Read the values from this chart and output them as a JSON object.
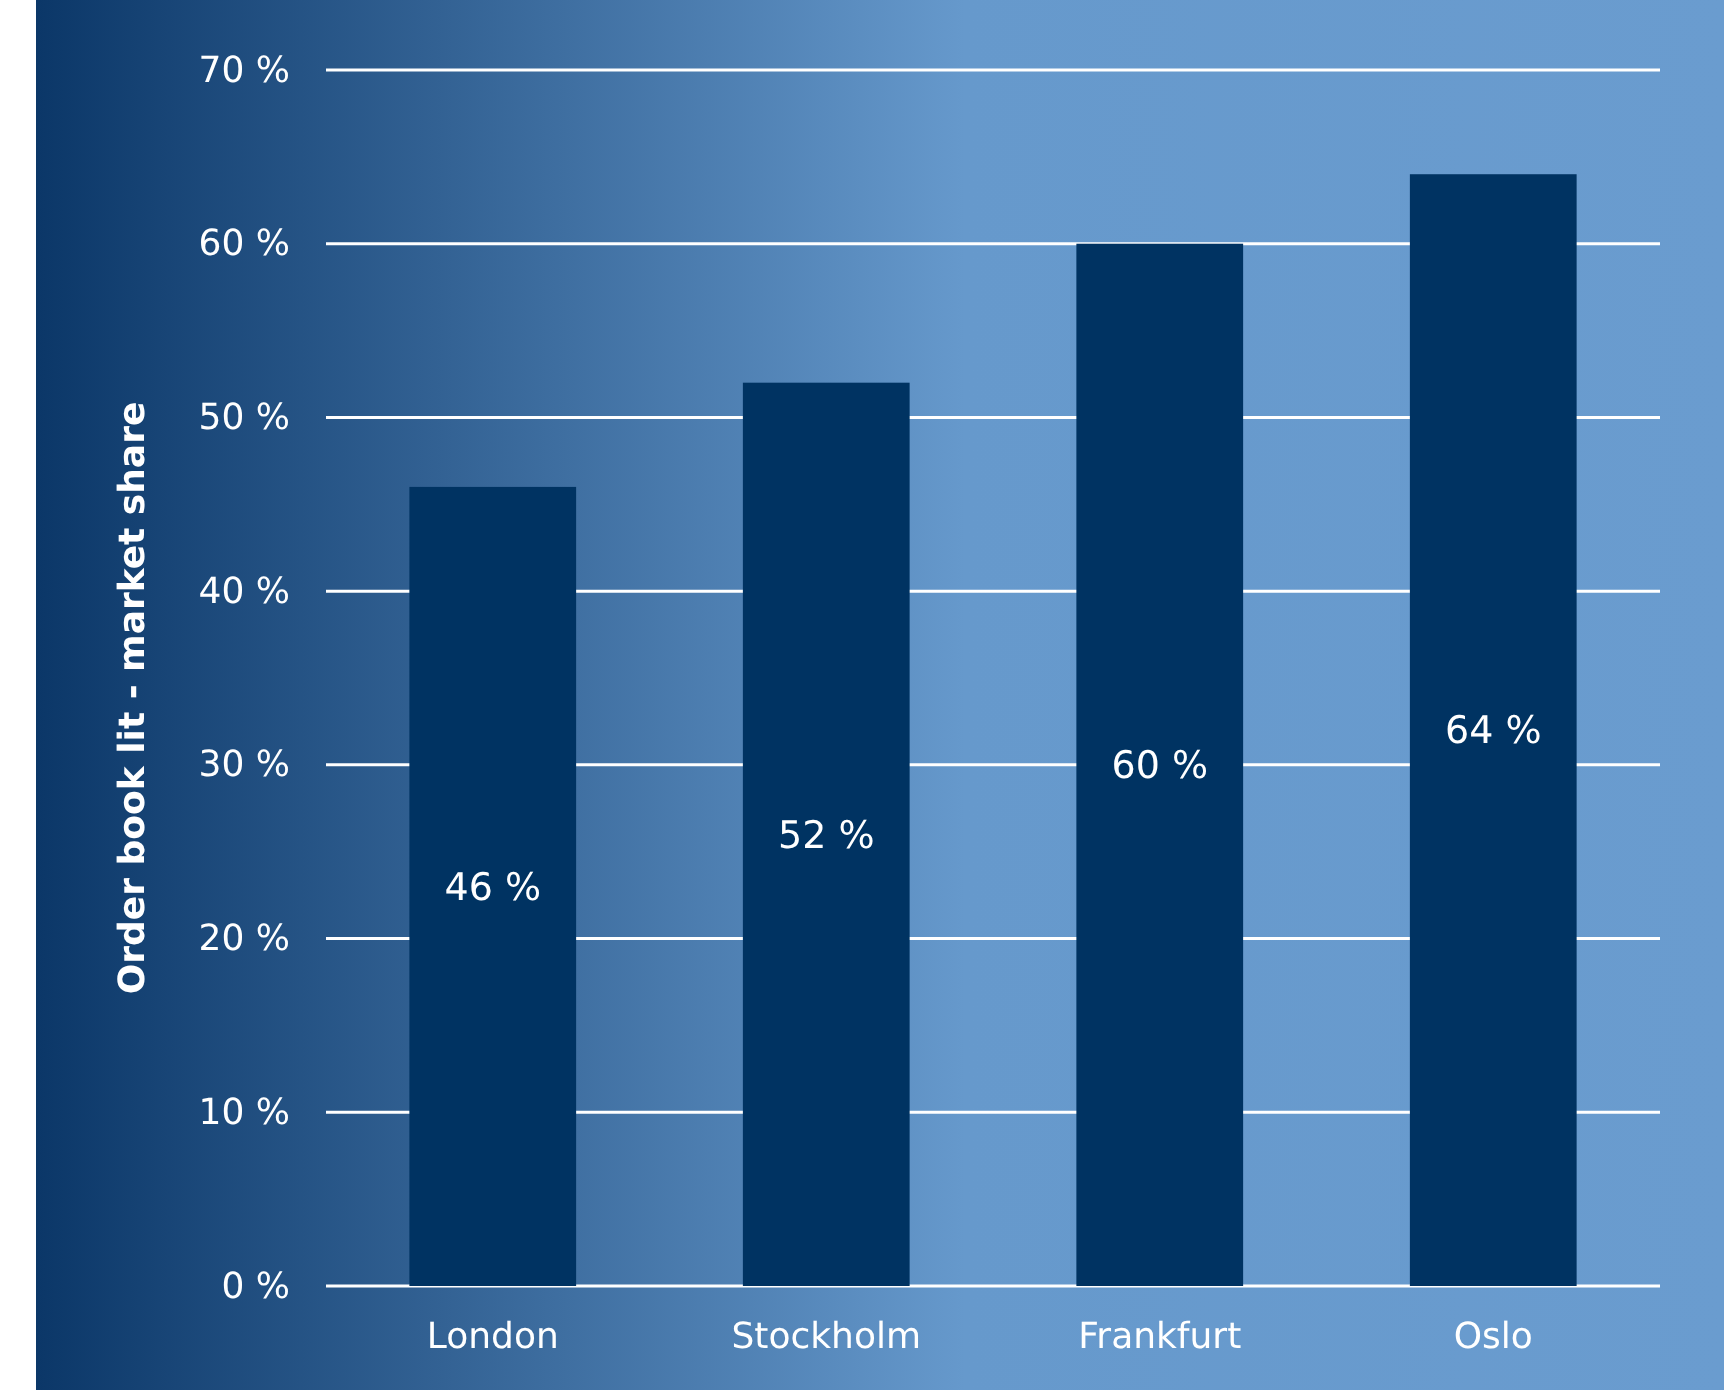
{
  "chart_data": {
    "type": "bar",
    "ylabel": "Order book lit - market share",
    "categories": [
      "London",
      "Stockholm",
      "Frankfurt",
      "Oslo"
    ],
    "values": [
      46,
      52,
      60,
      64
    ],
    "color": "#003362",
    "value_labels": [
      "46 %",
      "52 %",
      "60 %",
      "64 %"
    ],
    "ylim": [
      0,
      70
    ],
    "yticks": [
      {
        "value": 0,
        "label": "0 %"
      },
      {
        "value": 10,
        "label": "10 %"
      },
      {
        "value": 20,
        "label": "20 %"
      },
      {
        "value": 30,
        "label": "30 %"
      },
      {
        "value": 40,
        "label": "40 %"
      },
      {
        "value": 50,
        "label": "50 %"
      },
      {
        "value": 60,
        "label": "60 %"
      },
      {
        "value": 70,
        "label": "70 %"
      }
    ],
    "grid": "y"
  }
}
